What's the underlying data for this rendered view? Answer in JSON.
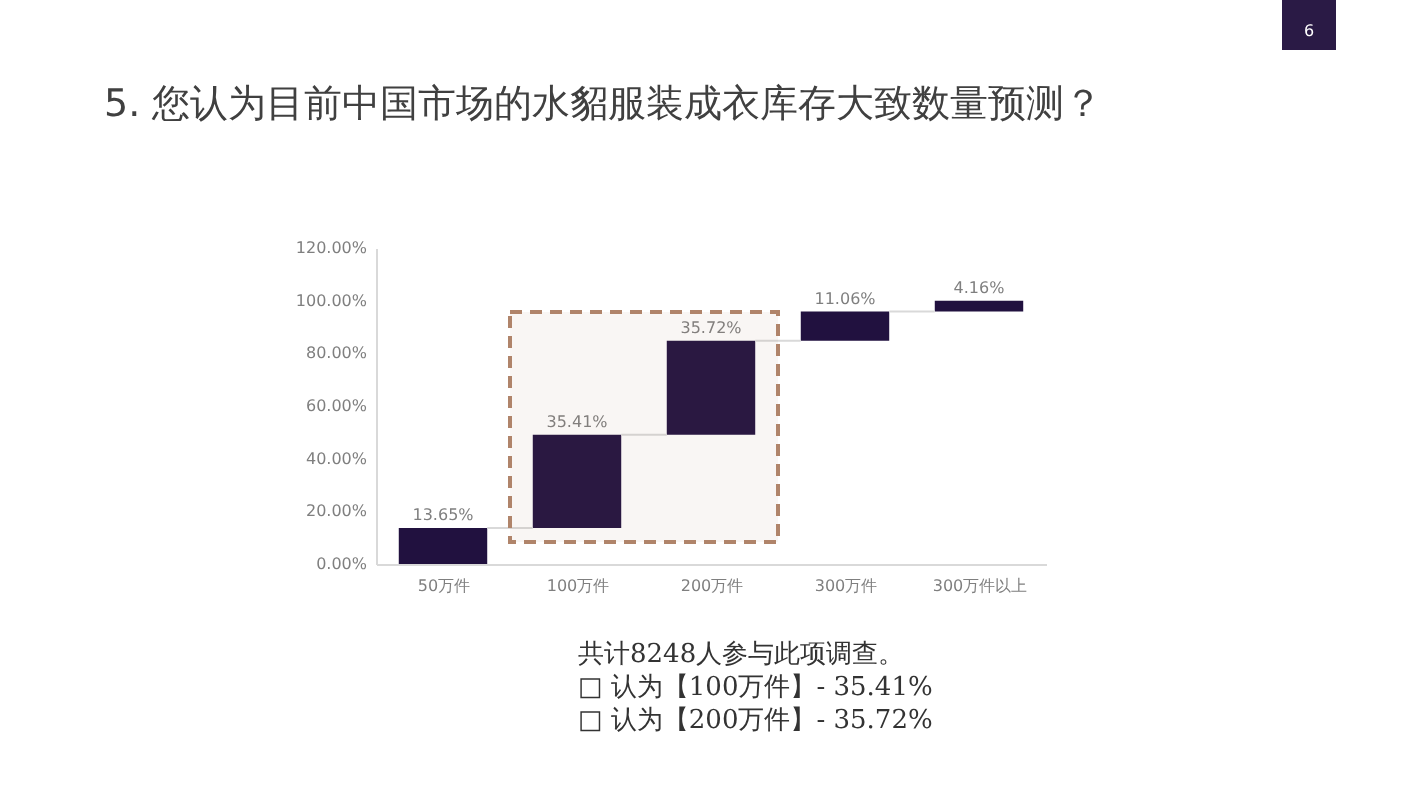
{
  "chart_data": {
    "type": "bar",
    "title": "5. 您认为目前中国市场的水貂服装成衣库存大致数量预测？",
    "categories": [
      "50万件",
      "100万件",
      "200万件",
      "300万件",
      "300万件以上"
    ],
    "values": [
      13.65,
      35.41,
      35.72,
      11.06,
      4.16
    ],
    "base": [
      0,
      13.65,
      49.06,
      84.78,
      95.84
    ],
    "value_labels": [
      "13.65%",
      "35.41%",
      "35.72%",
      "11.06%",
      "4.16%"
    ],
    "color": "#21113f",
    "ylim": [
      0,
      120
    ],
    "yticks": [
      {
        "value": 0,
        "label": "0.00%"
      },
      {
        "value": 20,
        "label": "20.00%"
      },
      {
        "value": 40,
        "label": "40.00%"
      },
      {
        "value": 60,
        "label": "60.00%"
      },
      {
        "value": 80,
        "label": "80.00%"
      },
      {
        "value": 100,
        "label": "100.00%"
      },
      {
        "value": 120,
        "label": "120.00%"
      }
    ],
    "bands": [
      {
        "axis": "x",
        "from": "100万件",
        "to": "200万件",
        "color": "#b0846a"
      }
    ],
    "annotations": [
      "共计8248人参与此项调查。",
      "□ 认为【100万件】- 35.41%",
      "□ 认为【200万件】- 35.72%",
      "6"
    ]
  }
}
